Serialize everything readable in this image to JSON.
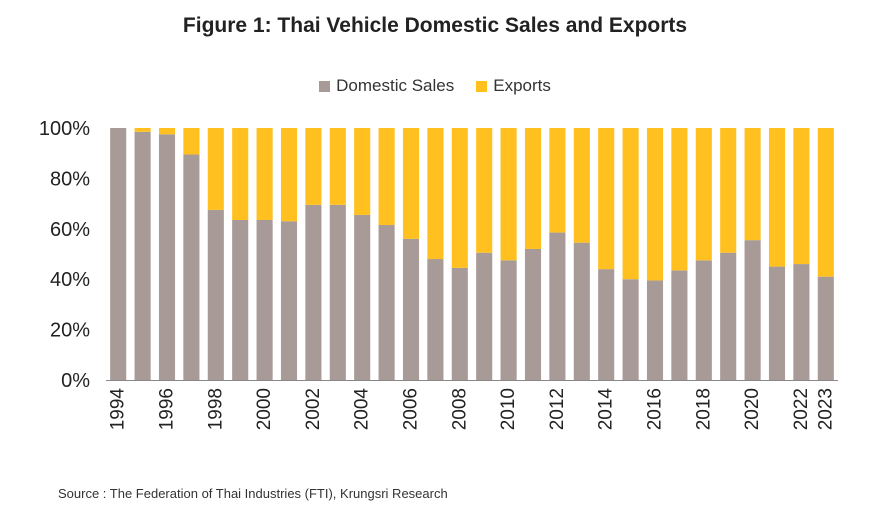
{
  "chart_data": {
    "type": "bar",
    "stacked": true,
    "title": "Figure 1: Thai Vehicle Domestic Sales and Exports",
    "ylim": [
      0,
      100
    ],
    "y_ticks": [
      "0%",
      "20%",
      "40%",
      "60%",
      "80%",
      "100%"
    ],
    "x_tick_labels": [
      "1994",
      "1996",
      "1998",
      "2000",
      "2002",
      "2004",
      "2006",
      "2008",
      "2010",
      "2012",
      "2014",
      "2016",
      "2018",
      "2020",
      "2022",
      "2023"
    ],
    "categories": [
      "1994",
      "1995",
      "1996",
      "1997",
      "1998",
      "1999",
      "2000",
      "2001",
      "2002",
      "2003",
      "2004",
      "2005",
      "2006",
      "2007",
      "2008",
      "2009",
      "2010",
      "2011",
      "2012",
      "2013",
      "2014",
      "2015",
      "2016",
      "2017",
      "2018",
      "2019",
      "2020",
      "2021",
      "2022",
      "2023"
    ],
    "legend_position": "top",
    "grid": false,
    "series": [
      {
        "name": "Domestic Sales",
        "color": "#a89a97",
        "values": [
          100,
          98.5,
          97.5,
          89.5,
          67.5,
          63.5,
          63.5,
          63,
          69.5,
          69.5,
          65.5,
          61.5,
          56,
          48,
          44.5,
          50.5,
          47.5,
          52,
          58.5,
          54.5,
          44,
          40,
          39.5,
          43.5,
          47.5,
          50.5,
          55.5,
          45,
          46,
          41
        ]
      },
      {
        "name": "Exports",
        "color": "#ffc020",
        "values": [
          0,
          1.5,
          2.5,
          10.5,
          32.5,
          36.5,
          36.5,
          37,
          30.5,
          30.5,
          34.5,
          38.5,
          44,
          52,
          55.5,
          49.5,
          52.5,
          48,
          41.5,
          45.5,
          56,
          60,
          60.5,
          56.5,
          52.5,
          49.5,
          44.5,
          55,
          54,
          59
        ]
      }
    ]
  },
  "source": "Source : The Federation of Thai Industries (FTI), Krungsri Research"
}
